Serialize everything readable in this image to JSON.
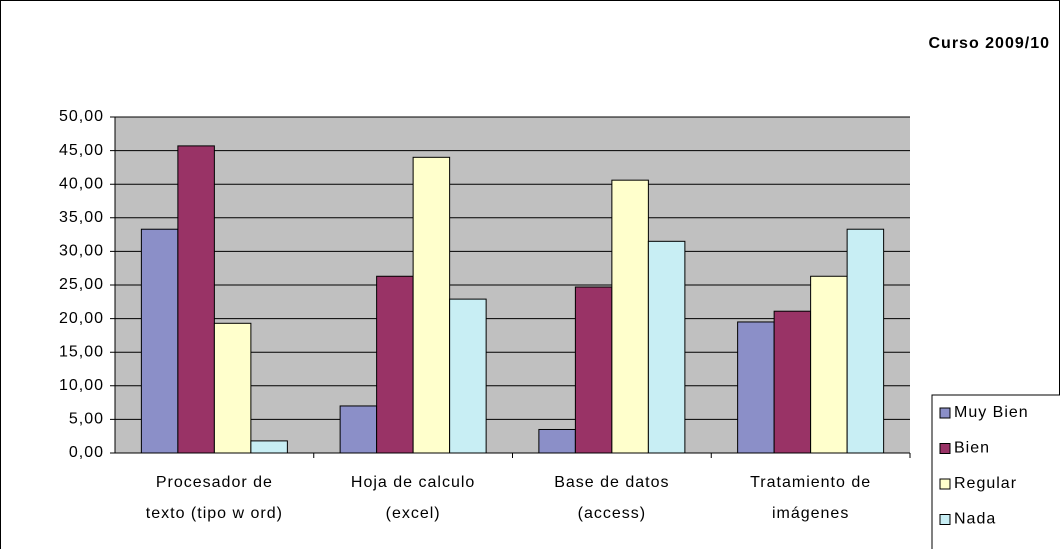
{
  "chart_data": {
    "type": "bar",
    "title": "Curso 2009/10",
    "categories": [
      [
        "Procesador de",
        "texto (tipo w ord)"
      ],
      [
        "Hoja de calculo",
        "(excel)"
      ],
      [
        "Base de datos",
        "(access)"
      ],
      [
        "Tratamiento de",
        "imágenes"
      ]
    ],
    "series": [
      {
        "name": "Muy Bien",
        "color": "#8b8fc8",
        "values": [
          33.3,
          7.0,
          3.5,
          19.5
        ]
      },
      {
        "name": "Bien",
        "color": "#993366",
        "values": [
          45.7,
          26.3,
          24.7,
          21.1
        ]
      },
      {
        "name": "Regular",
        "color": "#ffffcc",
        "values": [
          19.3,
          44.0,
          40.6,
          26.3
        ]
      },
      {
        "name": "Nada",
        "color": "#c8eef4",
        "values": [
          1.8,
          22.9,
          31.5,
          33.3
        ]
      }
    ],
    "ylim": [
      0,
      50
    ],
    "yticks": [
      {
        "value": 0,
        "label": "0,00"
      },
      {
        "value": 5,
        "label": "5,00"
      },
      {
        "value": 10,
        "label": "10,00"
      },
      {
        "value": 15,
        "label": "15,00"
      },
      {
        "value": 20,
        "label": "20,00"
      },
      {
        "value": 25,
        "label": "25,00"
      },
      {
        "value": 30,
        "label": "30,00"
      },
      {
        "value": 35,
        "label": "35,00"
      },
      {
        "value": 40,
        "label": "40,00"
      },
      {
        "value": 45,
        "label": "45,00"
      },
      {
        "value": 50,
        "label": "50,00"
      }
    ],
    "grid": true,
    "legend": "bottom-right"
  }
}
